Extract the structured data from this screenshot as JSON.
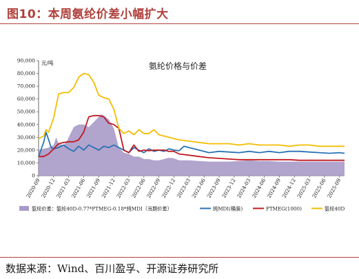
{
  "figure": {
    "label": "图10：本周氨纶价差小幅扩大",
    "source": "数据来源：Wind、百川盈孚、开源证券研究所"
  },
  "chart_data": {
    "type": "line",
    "title": "氨纶价格与价差",
    "ylabel": "元/吨",
    "ylim": [
      0,
      90000
    ],
    "yticks": [
      "0",
      "10,000",
      "20,000",
      "30,000",
      "40,000",
      "50,000",
      "60,000",
      "70,000",
      "80,000",
      "90,000"
    ],
    "x_labels": [
      "2020-09",
      "2020-12",
      "2021-03",
      "2021-06",
      "2021-09",
      "2021-12",
      "2022-03",
      "2022-06",
      "2022-09",
      "2022-12",
      "2023-03",
      "2023-06",
      "2023-09",
      "2023-12",
      "2024-03",
      "2024-06",
      "2024-09",
      "2024-12",
      "2025-03",
      "2025-06",
      "2025-09"
    ],
    "x_range": [
      0,
      61
    ],
    "legend_position": "bottom",
    "series": [
      {
        "name": "氨纶价差：氨纶40D-0.77*PTMEG-0.18*纯MDI（当期价差）",
        "type": "area",
        "color": "#a99ac8",
        "x": [
          0,
          1,
          2,
          3,
          3.5,
          4,
          5,
          5.5,
          6,
          7,
          8,
          9,
          10,
          11,
          12,
          12.5,
          13,
          14,
          15,
          16,
          17,
          18,
          19,
          20,
          21,
          22,
          23,
          24,
          25,
          26,
          27,
          28,
          30,
          32,
          34,
          36,
          38,
          40,
          42,
          44,
          46,
          48,
          50,
          52,
          54,
          56,
          58,
          60,
          61
        ],
        "values": [
          20000,
          21000,
          22000,
          24000,
          30000,
          25000,
          24000,
          26000,
          30000,
          38000,
          40000,
          40000,
          38000,
          42000,
          46000,
          48000,
          47000,
          44000,
          37000,
          22000,
          18000,
          17000,
          15000,
          15000,
          13000,
          13000,
          12000,
          12000,
          13000,
          14000,
          13500,
          12000,
          12000,
          11500,
          11000,
          11000,
          11000,
          11500,
          12000,
          11500,
          11500,
          11000,
          11000,
          11000,
          11000,
          11000,
          11000,
          11000,
          11000
        ]
      },
      {
        "name": "纯MDI(桶装)",
        "type": "line",
        "color": "#2a72b5",
        "x": [
          0,
          1,
          1.5,
          2,
          2.5,
          3,
          4,
          5,
          6,
          7,
          8,
          9,
          10,
          11,
          12,
          13,
          14,
          15,
          16,
          17,
          18,
          19,
          20,
          21,
          22,
          23,
          24,
          25,
          26,
          27,
          28,
          29,
          30,
          31,
          32,
          33,
          34,
          36,
          38,
          40,
          42,
          44,
          46,
          48,
          50,
          52,
          54,
          56,
          58,
          60,
          61
        ],
        "values": [
          15000,
          26000,
          34000,
          28000,
          22000,
          21000,
          22000,
          24000,
          21000,
          19000,
          23000,
          20000,
          24000,
          22000,
          20000,
          23000,
          22000,
          24000,
          22000,
          20000,
          18000,
          22000,
          20000,
          18000,
          21000,
          19000,
          20000,
          19000,
          21000,
          20000,
          19500,
          23000,
          22000,
          21000,
          20000,
          19000,
          18000,
          19000,
          18500,
          18000,
          19000,
          18000,
          19000,
          18000,
          19000,
          19000,
          18500,
          18000,
          17500,
          18000,
          17500
        ]
      },
      {
        "name": "PTMEG(1000)",
        "type": "line",
        "color": "#c01920",
        "x": [
          0,
          1,
          2,
          3,
          4,
          5,
          6,
          7,
          8,
          9,
          10,
          11,
          12,
          13,
          14,
          15,
          16,
          17,
          18,
          19,
          20,
          21,
          22,
          23,
          24,
          25,
          26,
          27,
          28,
          30,
          32,
          34,
          36,
          38,
          40,
          42,
          44,
          46,
          48,
          50,
          52,
          54,
          56,
          58,
          60,
          61
        ],
        "values": [
          15000,
          15000,
          17000,
          21000,
          25000,
          26000,
          26500,
          26500,
          28000,
          34000,
          46000,
          47000,
          47000,
          46000,
          41000,
          40000,
          37000,
          20000,
          18000,
          24000,
          19000,
          20000,
          19500,
          20000,
          20000,
          20000,
          19000,
          19000,
          17000,
          16000,
          15000,
          14000,
          13500,
          13000,
          12500,
          12500,
          12500,
          12500,
          12500,
          12500,
          12000,
          12000,
          12000,
          12000,
          12000,
          12000
        ]
      },
      {
        "name": "氨纶40D",
        "type": "line",
        "color": "#f3bd00",
        "x": [
          0,
          1,
          1.5,
          2,
          3,
          4,
          5,
          6,
          7,
          8,
          9,
          10,
          11,
          12,
          13,
          14,
          15,
          16,
          17,
          18,
          19,
          20,
          21,
          22,
          23,
          24,
          25,
          26,
          27,
          28,
          30,
          32,
          34,
          36,
          38,
          40,
          42,
          44,
          46,
          48,
          50,
          52,
          54,
          56,
          58,
          60,
          61
        ],
        "values": [
          29000,
          31000,
          36000,
          34000,
          45000,
          64000,
          65000,
          65000,
          69000,
          77000,
          80000,
          79000,
          73000,
          63000,
          61000,
          60000,
          52000,
          37000,
          33000,
          35000,
          32000,
          36000,
          33000,
          33000,
          36000,
          32000,
          31000,
          30000,
          29000,
          28000,
          27000,
          26000,
          25000,
          25000,
          25000,
          24000,
          25000,
          24000,
          24000,
          24000,
          23000,
          24000,
          24000,
          23000,
          23000,
          23000,
          23000
        ]
      }
    ]
  }
}
